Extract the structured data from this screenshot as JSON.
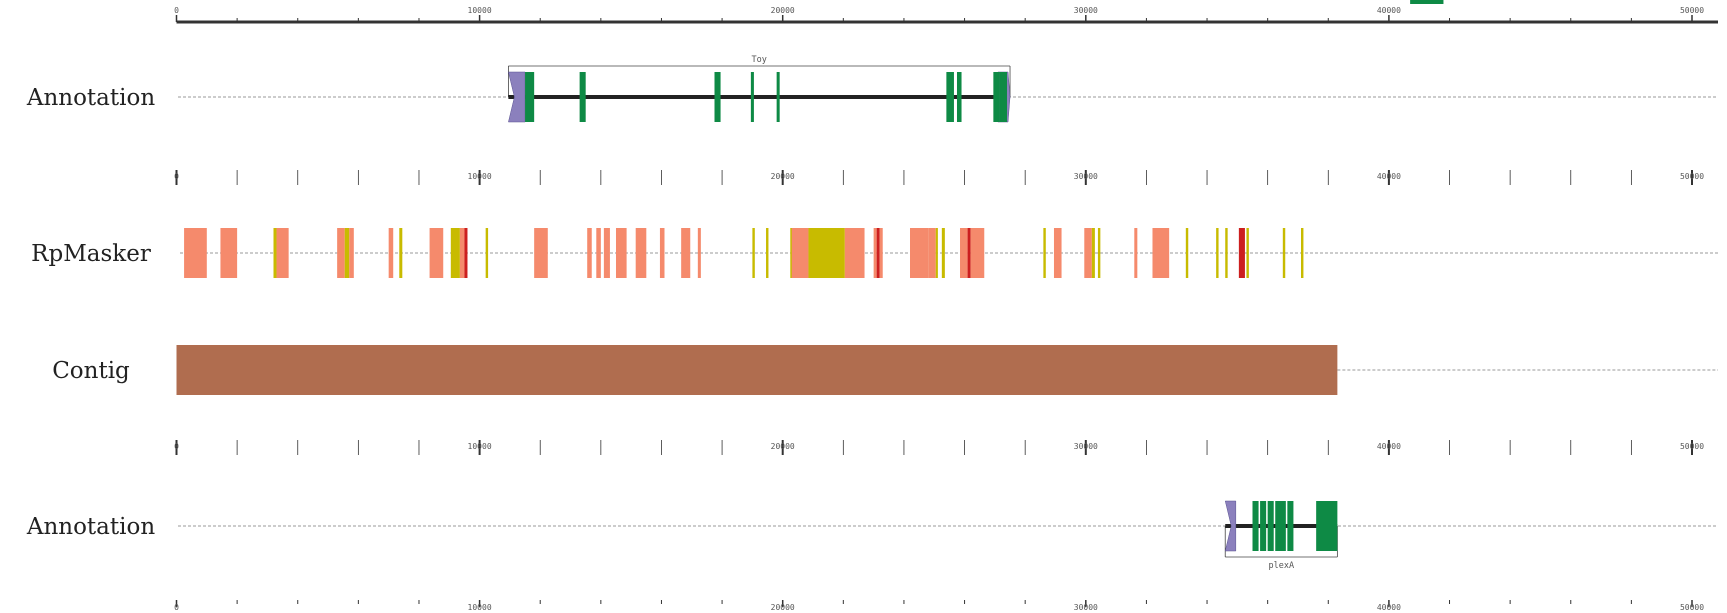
{
  "genome_view": {
    "axis": {
      "min": 0,
      "max": 51000,
      "tick_step": 2000,
      "label_step": 10000,
      "tick_labels": [
        "0",
        "10000",
        "20000",
        "30000",
        "40000",
        "50000"
      ]
    },
    "colors": {
      "axis": "#333333",
      "exon": "#0e8a45",
      "utr": "#8b80bd",
      "intron": "#222222",
      "repeat_salmon": "#f58a6c",
      "repeat_olive": "#c8bb00",
      "repeat_red": "#cc1f1f",
      "contig": "#b06d4f",
      "baseline": "#777777"
    },
    "tracks": [
      {
        "label": "Annotation",
        "kind": "gene",
        "gene": {
          "name": "Toy",
          "start": 10950,
          "end": 27500,
          "strand": "+",
          "label_position": "above",
          "utr5": [
            10950,
            11500
          ],
          "utr3": [
            27100,
            27500
          ],
          "exons": [
            [
              11500,
              11800
            ],
            [
              13300,
              13500
            ],
            [
              17750,
              17950
            ],
            [
              18950,
              19050
            ],
            [
              19800,
              19900
            ],
            [
              25400,
              25650
            ],
            [
              25750,
              25900
            ],
            [
              26950,
              27150
            ],
            [
              27150,
              27400
            ]
          ]
        }
      },
      {
        "label": "RpMasker",
        "kind": "repeats",
        "repeats": [
          {
            "s": 250,
            "e": 1000,
            "c": "s"
          },
          {
            "s": 1450,
            "e": 2000,
            "c": "s"
          },
          {
            "s": 3200,
            "e": 3300,
            "c": "o"
          },
          {
            "s": 3300,
            "e": 3700,
            "c": "s"
          },
          {
            "s": 5300,
            "e": 5550,
            "c": "s"
          },
          {
            "s": 5550,
            "e": 5700,
            "c": "o"
          },
          {
            "s": 5700,
            "e": 5850,
            "c": "s"
          },
          {
            "s": 7000,
            "e": 7150,
            "c": "s"
          },
          {
            "s": 7350,
            "e": 7450,
            "c": "o"
          },
          {
            "s": 8350,
            "e": 8800,
            "c": "s"
          },
          {
            "s": 9050,
            "e": 9350,
            "c": "o"
          },
          {
            "s": 9350,
            "e": 9500,
            "c": "s"
          },
          {
            "s": 9500,
            "e": 9600,
            "c": "r"
          },
          {
            "s": 10200,
            "e": 10280,
            "c": "o"
          },
          {
            "s": 11800,
            "e": 12250,
            "c": "s"
          },
          {
            "s": 13550,
            "e": 13700,
            "c": "s"
          },
          {
            "s": 13850,
            "e": 14000,
            "c": "s"
          },
          {
            "s": 14100,
            "e": 14300,
            "c": "s"
          },
          {
            "s": 14500,
            "e": 14850,
            "c": "s"
          },
          {
            "s": 15150,
            "e": 15500,
            "c": "s"
          },
          {
            "s": 15950,
            "e": 16100,
            "c": "s"
          },
          {
            "s": 16650,
            "e": 16950,
            "c": "s"
          },
          {
            "s": 17200,
            "e": 17300,
            "c": "s"
          },
          {
            "s": 19000,
            "e": 19080,
            "c": "o"
          },
          {
            "s": 19450,
            "e": 19530,
            "c": "o"
          },
          {
            "s": 20250,
            "e": 20300,
            "c": "o"
          },
          {
            "s": 20300,
            "e": 20850,
            "c": "s"
          },
          {
            "s": 20850,
            "e": 22050,
            "c": "o"
          },
          {
            "s": 22050,
            "e": 22700,
            "c": "s"
          },
          {
            "s": 23000,
            "e": 23100,
            "c": "s"
          },
          {
            "s": 23100,
            "e": 23200,
            "c": "r"
          },
          {
            "s": 23200,
            "e": 23300,
            "c": "s"
          },
          {
            "s": 24200,
            "e": 24800,
            "c": "s"
          },
          {
            "s": 24800,
            "e": 25050,
            "c": "s"
          },
          {
            "s": 25050,
            "e": 25120,
            "c": "o"
          },
          {
            "s": 25250,
            "e": 25350,
            "c": "o"
          },
          {
            "s": 25850,
            "e": 26100,
            "c": "s"
          },
          {
            "s": 26100,
            "e": 26200,
            "c": "r"
          },
          {
            "s": 26200,
            "e": 26650,
            "c": "s"
          },
          {
            "s": 28600,
            "e": 28680,
            "c": "o"
          },
          {
            "s": 28950,
            "e": 29200,
            "c": "s"
          },
          {
            "s": 29950,
            "e": 30200,
            "c": "s"
          },
          {
            "s": 30200,
            "e": 30300,
            "c": "o"
          },
          {
            "s": 30400,
            "e": 30480,
            "c": "o"
          },
          {
            "s": 31600,
            "e": 31700,
            "c": "s"
          },
          {
            "s": 32200,
            "e": 32750,
            "c": "s"
          },
          {
            "s": 33300,
            "e": 33380,
            "c": "o"
          },
          {
            "s": 34300,
            "e": 34380,
            "c": "o"
          },
          {
            "s": 34600,
            "e": 34680,
            "c": "o"
          },
          {
            "s": 35050,
            "e": 35250,
            "c": "r"
          },
          {
            "s": 35300,
            "e": 35380,
            "c": "o"
          },
          {
            "s": 36500,
            "e": 36580,
            "c": "o"
          },
          {
            "s": 37100,
            "e": 37180,
            "c": "o"
          }
        ]
      },
      {
        "label": "Contig",
        "kind": "contig",
        "contig": {
          "start": 0,
          "end": 38300
        }
      },
      {
        "label": "Annotation",
        "kind": "gene",
        "gene": {
          "name": "plexA",
          "start": 34600,
          "end": 38300,
          "strand": "+",
          "label_position": "below",
          "utr5": [
            34600,
            34950
          ],
          "utr3": [],
          "exons": [
            [
              35500,
              35700
            ],
            [
              35750,
              35950
            ],
            [
              36000,
              36200
            ],
            [
              36250,
              36600
            ],
            [
              36650,
              36850
            ],
            [
              37600,
              38300
            ]
          ]
        }
      }
    ],
    "overflow_feature": {
      "start": 40700,
      "end": 41800
    }
  }
}
